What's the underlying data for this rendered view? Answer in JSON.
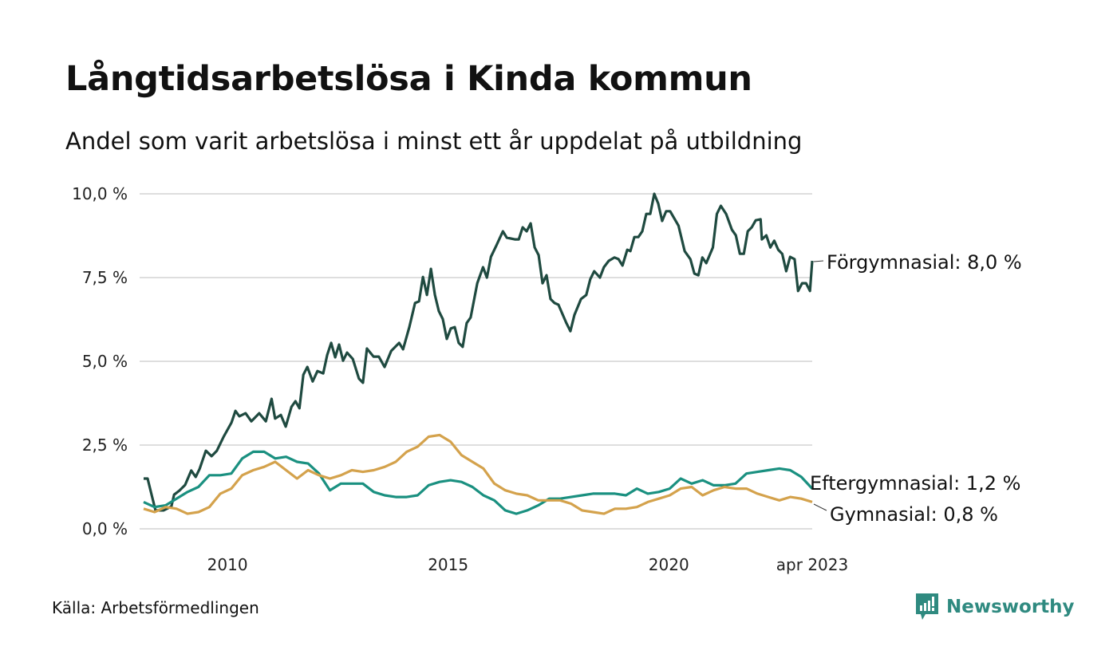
{
  "chart_data": {
    "type": "line",
    "title": "Långtidsarbetslösa i Kinda kommun",
    "subtitle": "Andel som varit arbetslösa i minst ett år uppdelat på utbildning",
    "xlabel": "",
    "ylabel": "",
    "xlim": [
      2008.1,
      2023.25
    ],
    "ylim": [
      0,
      10
    ],
    "grid": true,
    "y_ticks": [
      0,
      2.5,
      5,
      7.5,
      10
    ],
    "y_tick_labels": [
      "0,0 %",
      "2,5 %",
      "5,0 %",
      "7,5 %",
      "10,0 %"
    ],
    "x_ticks": [
      2010,
      2015,
      2020,
      2023.25
    ],
    "x_tick_labels": [
      "2010",
      "2015",
      "2020",
      "apr 2023"
    ],
    "series": [
      {
        "name": "Förgymnasial",
        "end_label": "Förgymnasial: 8,0 %",
        "color": "#1f4a40",
        "points": [
          [
            2008.1,
            1.5
          ],
          [
            2008.19,
            1.5
          ],
          [
            2008.28,
            1.02
          ],
          [
            2008.37,
            0.55
          ],
          [
            2008.55,
            0.55
          ],
          [
            2008.73,
            0.67
          ],
          [
            2008.79,
            1.02
          ],
          [
            2008.91,
            1.14
          ],
          [
            2009.04,
            1.31
          ],
          [
            2009.18,
            1.74
          ],
          [
            2009.28,
            1.55
          ],
          [
            2009.37,
            1.79
          ],
          [
            2009.51,
            2.33
          ],
          [
            2009.64,
            2.17
          ],
          [
            2009.76,
            2.33
          ],
          [
            2009.91,
            2.74
          ],
          [
            2010.09,
            3.17
          ],
          [
            2010.18,
            3.52
          ],
          [
            2010.27,
            3.36
          ],
          [
            2010.41,
            3.45
          ],
          [
            2010.54,
            3.21
          ],
          [
            2010.72,
            3.45
          ],
          [
            2010.87,
            3.21
          ],
          [
            2011.0,
            3.88
          ],
          [
            2011.08,
            3.29
          ],
          [
            2011.21,
            3.4
          ],
          [
            2011.32,
            3.05
          ],
          [
            2011.45,
            3.64
          ],
          [
            2011.54,
            3.81
          ],
          [
            2011.63,
            3.6
          ],
          [
            2011.72,
            4.6
          ],
          [
            2011.81,
            4.83
          ],
          [
            2011.93,
            4.4
          ],
          [
            2012.04,
            4.71
          ],
          [
            2012.17,
            4.64
          ],
          [
            2012.26,
            5.19
          ],
          [
            2012.35,
            5.55
          ],
          [
            2012.44,
            5.12
          ],
          [
            2012.53,
            5.5
          ],
          [
            2012.62,
            5.02
          ],
          [
            2012.71,
            5.26
          ],
          [
            2012.84,
            5.07
          ],
          [
            2012.98,
            4.48
          ],
          [
            2013.07,
            4.36
          ],
          [
            2013.16,
            5.38
          ],
          [
            2013.31,
            5.14
          ],
          [
            2013.43,
            5.14
          ],
          [
            2013.56,
            4.83
          ],
          [
            2013.71,
            5.31
          ],
          [
            2013.89,
            5.55
          ],
          [
            2013.98,
            5.36
          ],
          [
            2014.12,
            6.02
          ],
          [
            2014.25,
            6.74
          ],
          [
            2014.34,
            6.79
          ],
          [
            2014.43,
            7.52
          ],
          [
            2014.52,
            6.98
          ],
          [
            2014.61,
            7.76
          ],
          [
            2014.7,
            6.98
          ],
          [
            2014.79,
            6.5
          ],
          [
            2014.88,
            6.26
          ],
          [
            2014.97,
            5.67
          ],
          [
            2015.06,
            5.98
          ],
          [
            2015.15,
            6.02
          ],
          [
            2015.24,
            5.55
          ],
          [
            2015.33,
            5.43
          ],
          [
            2015.42,
            6.14
          ],
          [
            2015.51,
            6.31
          ],
          [
            2015.66,
            7.33
          ],
          [
            2015.79,
            7.81
          ],
          [
            2015.88,
            7.5
          ],
          [
            2015.97,
            8.12
          ],
          [
            2016.09,
            8.45
          ],
          [
            2016.24,
            8.88
          ],
          [
            2016.33,
            8.69
          ],
          [
            2016.51,
            8.64
          ],
          [
            2016.6,
            8.64
          ],
          [
            2016.69,
            9.0
          ],
          [
            2016.78,
            8.88
          ],
          [
            2016.87,
            9.12
          ],
          [
            2016.96,
            8.4
          ],
          [
            2017.05,
            8.17
          ],
          [
            2017.14,
            7.33
          ],
          [
            2017.23,
            7.57
          ],
          [
            2017.32,
            6.86
          ],
          [
            2017.41,
            6.74
          ],
          [
            2017.5,
            6.69
          ],
          [
            2017.68,
            6.14
          ],
          [
            2017.77,
            5.9
          ],
          [
            2017.86,
            6.38
          ],
          [
            2018.01,
            6.86
          ],
          [
            2018.13,
            6.98
          ],
          [
            2018.22,
            7.45
          ],
          [
            2018.31,
            7.69
          ],
          [
            2018.44,
            7.5
          ],
          [
            2018.53,
            7.81
          ],
          [
            2018.64,
            8.0
          ],
          [
            2018.77,
            8.1
          ],
          [
            2018.86,
            8.05
          ],
          [
            2018.95,
            7.86
          ],
          [
            2019.06,
            8.33
          ],
          [
            2019.13,
            8.29
          ],
          [
            2019.22,
            8.71
          ],
          [
            2019.31,
            8.71
          ],
          [
            2019.4,
            8.88
          ],
          [
            2019.49,
            9.4
          ],
          [
            2019.58,
            9.4
          ],
          [
            2019.67,
            10.0
          ],
          [
            2019.76,
            9.71
          ],
          [
            2019.85,
            9.19
          ],
          [
            2019.94,
            9.48
          ],
          [
            2020.03,
            9.48
          ],
          [
            2020.22,
            9.05
          ],
          [
            2020.36,
            8.29
          ],
          [
            2020.49,
            8.05
          ],
          [
            2020.58,
            7.62
          ],
          [
            2020.67,
            7.57
          ],
          [
            2020.76,
            8.1
          ],
          [
            2020.85,
            7.93
          ],
          [
            2021.0,
            8.4
          ],
          [
            2021.09,
            9.4
          ],
          [
            2021.18,
            9.64
          ],
          [
            2021.3,
            9.4
          ],
          [
            2021.43,
            8.93
          ],
          [
            2021.52,
            8.76
          ],
          [
            2021.61,
            8.21
          ],
          [
            2021.7,
            8.21
          ],
          [
            2021.79,
            8.88
          ],
          [
            2021.88,
            9.0
          ],
          [
            2021.97,
            9.21
          ],
          [
            2022.08,
            9.24
          ],
          [
            2022.11,
            8.64
          ],
          [
            2022.21,
            8.76
          ],
          [
            2022.3,
            8.4
          ],
          [
            2022.39,
            8.6
          ],
          [
            2022.48,
            8.33
          ],
          [
            2022.57,
            8.21
          ],
          [
            2022.66,
            7.69
          ],
          [
            2022.75,
            8.12
          ],
          [
            2022.85,
            8.05
          ],
          [
            2022.93,
            7.1
          ],
          [
            2023.02,
            7.33
          ],
          [
            2023.11,
            7.33
          ],
          [
            2023.2,
            7.1
          ],
          [
            2023.25,
            8.0
          ]
        ]
      },
      {
        "name": "Eftergymnasial",
        "end_label": "Eftergymnasial: 1,2 %",
        "color": "#1a9080",
        "x_range": [
          2008.1,
          2023.25
        ],
        "values": [
          0.8,
          0.65,
          0.7,
          0.9,
          1.1,
          1.25,
          1.6,
          1.6,
          1.65,
          2.1,
          2.3,
          2.3,
          2.1,
          2.15,
          2.0,
          1.95,
          1.65,
          1.15,
          1.35,
          1.35,
          1.35,
          1.1,
          1.0,
          0.95,
          0.95,
          1.0,
          1.3,
          1.4,
          1.45,
          1.4,
          1.25,
          1.0,
          0.85,
          0.55,
          0.45,
          0.55,
          0.7,
          0.9,
          0.9,
          0.95,
          1.0,
          1.05,
          1.05,
          1.05,
          1.0,
          1.2,
          1.05,
          1.1,
          1.2,
          1.5,
          1.35,
          1.45,
          1.3,
          1.3,
          1.35,
          1.65,
          1.7,
          1.75,
          1.8,
          1.75,
          1.55,
          1.2
        ]
      },
      {
        "name": "Gymnasial",
        "end_label": "Gymnasial: 0,8 %",
        "color": "#d4a24c",
        "x_range": [
          2008.1,
          2023.25
        ],
        "values": [
          0.6,
          0.5,
          0.65,
          0.6,
          0.45,
          0.5,
          0.65,
          1.05,
          1.2,
          1.6,
          1.75,
          1.85,
          2.0,
          1.75,
          1.5,
          1.75,
          1.6,
          1.5,
          1.6,
          1.75,
          1.7,
          1.75,
          1.85,
          2.0,
          2.3,
          2.45,
          2.75,
          2.8,
          2.6,
          2.2,
          2.0,
          1.8,
          1.35,
          1.15,
          1.05,
          1.0,
          0.85,
          0.85,
          0.85,
          0.75,
          0.55,
          0.5,
          0.45,
          0.6,
          0.6,
          0.65,
          0.8,
          0.9,
          1.0,
          1.2,
          1.25,
          1.0,
          1.15,
          1.25,
          1.2,
          1.2,
          1.05,
          0.95,
          0.85,
          0.95,
          0.9,
          0.8
        ]
      }
    ]
  },
  "footer": {
    "source": "Källa: Arbetsförmedlingen",
    "brand": "Newsworthy",
    "brand_color": "#2f8a80"
  }
}
